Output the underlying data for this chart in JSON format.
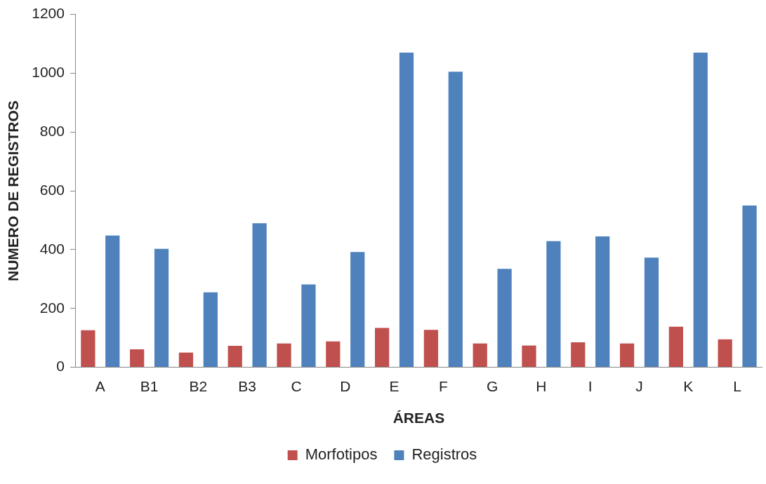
{
  "chart_data": {
    "type": "bar",
    "xlabel": "ÁREAS",
    "ylabel": "NUMERO DE REGISTROS",
    "categories": [
      "A",
      "B1",
      "B2",
      "B3",
      "C",
      "D",
      "E",
      "F",
      "G",
      "H",
      "I",
      "J",
      "K",
      "L"
    ],
    "series": [
      {
        "name": "Morfotipos",
        "color": "#c0504d",
        "values": [
          126,
          61,
          50,
          73,
          81,
          88,
          134,
          127,
          81,
          74,
          85,
          81,
          138,
          95
        ]
      },
      {
        "name": "Registros",
        "color": "#4f81bd",
        "values": [
          448,
          403,
          255,
          490,
          282,
          392,
          1070,
          1005,
          335,
          429,
          445,
          373,
          1070,
          550
        ]
      }
    ],
    "ylim": [
      0,
      1200
    ],
    "yticks": [
      0,
      200,
      400,
      600,
      800,
      1000,
      1200
    ],
    "grid": false,
    "legend": "bottom"
  }
}
